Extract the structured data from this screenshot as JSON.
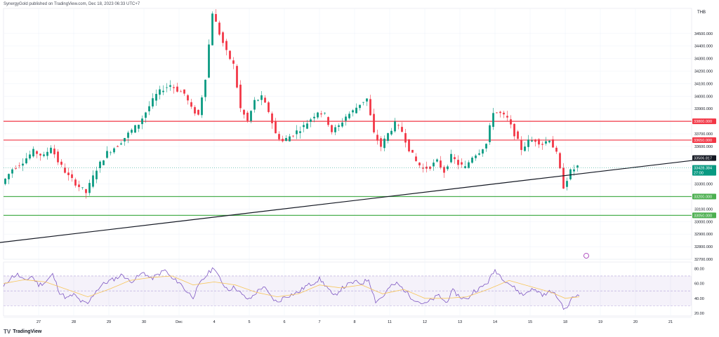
{
  "header": {
    "publisher": "SynergyGold published on TradingView.com, Dec 18, 2023 06:33 UTC+7"
  },
  "footer": {
    "brand": "TradingView"
  },
  "chart_data": [
    {
      "type": "candlestick",
      "currency": "THB",
      "ylim": [
        32700,
        34700
      ],
      "yticks": [
        32700,
        32800,
        32900,
        33000,
        33100,
        33200,
        33300,
        33400,
        33500,
        33600,
        33700,
        33800,
        33900,
        34000,
        34100,
        34200,
        34300,
        34400,
        34500
      ],
      "y_tick_labels": [
        "32700.000",
        "32800.000",
        "32900.000",
        "33000.000",
        "33100.000",
        "33200.000",
        "33300.000",
        "33400.000",
        "33500.000",
        "33600.000",
        "33700.000",
        "33800.000",
        "33900.000",
        "34000.000",
        "34100.000",
        "34200.000",
        "34300.000",
        "34400.000",
        "34500.000"
      ],
      "x_tick_labels": [
        "27",
        "28",
        "29",
        "30",
        "Dec",
        "4",
        "5",
        "6",
        "7",
        "8",
        "11",
        "12",
        "13",
        "14",
        "15",
        "18",
        "19",
        "20",
        "21"
      ],
      "x_tick_index": [
        10,
        20,
        30,
        40,
        50,
        60,
        70,
        80,
        90,
        100,
        110,
        120,
        130,
        140,
        150,
        160,
        170,
        180,
        190
      ],
      "close_path": [
        [
          0,
          33300
        ],
        [
          3,
          33420
        ],
        [
          6,
          33480
        ],
        [
          9,
          33560
        ],
        [
          12,
          33520
        ],
        [
          14,
          33600
        ],
        [
          16,
          33480
        ],
        [
          19,
          33360
        ],
        [
          22,
          33280
        ],
        [
          24,
          33230
        ],
        [
          27,
          33420
        ],
        [
          30,
          33550
        ],
        [
          33,
          33610
        ],
        [
          36,
          33700
        ],
        [
          39,
          33780
        ],
        [
          42,
          33920
        ],
        [
          44,
          34010
        ],
        [
          46,
          34060
        ],
        [
          48,
          34090
        ],
        [
          50,
          34050
        ],
        [
          52,
          34020
        ],
        [
          54,
          33900
        ],
        [
          56,
          33850
        ],
        [
          58,
          34150
        ],
        [
          60,
          34670
        ],
        [
          62,
          34500
        ],
        [
          64,
          34350
        ],
        [
          66,
          34250
        ],
        [
          68,
          33900
        ],
        [
          70,
          33800
        ],
        [
          72,
          33960
        ],
        [
          74,
          33990
        ],
        [
          76,
          33880
        ],
        [
          78,
          33700
        ],
        [
          80,
          33640
        ],
        [
          82,
          33680
        ],
        [
          84,
          33720
        ],
        [
          86,
          33760
        ],
        [
          88,
          33820
        ],
        [
          90,
          33880
        ],
        [
          92,
          33850
        ],
        [
          94,
          33720
        ],
        [
          96,
          33760
        ],
        [
          98,
          33840
        ],
        [
          100,
          33880
        ],
        [
          102,
          33940
        ],
        [
          104,
          33980
        ],
        [
          106,
          33700
        ],
        [
          108,
          33600
        ],
        [
          110,
          33700
        ],
        [
          112,
          33780
        ],
        [
          114,
          33720
        ],
        [
          116,
          33580
        ],
        [
          118,
          33480
        ],
        [
          120,
          33420
        ],
        [
          122,
          33440
        ],
        [
          124,
          33480
        ],
        [
          126,
          33400
        ],
        [
          128,
          33520
        ],
        [
          130,
          33460
        ],
        [
          132,
          33430
        ],
        [
          134,
          33520
        ],
        [
          136,
          33560
        ],
        [
          138,
          33620
        ],
        [
          140,
          33880
        ],
        [
          142,
          33860
        ],
        [
          144,
          33820
        ],
        [
          146,
          33700
        ],
        [
          148,
          33580
        ],
        [
          150,
          33640
        ],
        [
          152,
          33650
        ],
        [
          154,
          33620
        ],
        [
          156,
          33660
        ],
        [
          158,
          33540
        ],
        [
          160,
          33280
        ],
        [
          162,
          33400
        ],
        [
          164,
          33440
        ]
      ],
      "price_levels": [
        {
          "value": 33800,
          "label": "33800.000",
          "color": "#f23645"
        },
        {
          "value": 33650,
          "label": "33650.000",
          "color": "#f23645"
        },
        {
          "value": 33200,
          "label": "33200.000",
          "color": "#4caf50"
        },
        {
          "value": 33050,
          "label": "33050.000",
          "color": "#4caf50"
        }
      ],
      "last_price": {
        "value": 33428.384,
        "label": "33428.384",
        "countdown": "27:00",
        "color": "#089981"
      },
      "marker_price": {
        "value": 33506.817,
        "label": "33506.817",
        "color": "#131722"
      },
      "trendline": {
        "from": [
          -2,
          32830
        ],
        "to": [
          200,
          33500
        ],
        "color": "#131722"
      },
      "up_color": "#089981",
      "down_color": "#f23645"
    },
    {
      "type": "line",
      "indicator": "rsi",
      "ylim": [
        20,
        85
      ],
      "yticks": [
        20,
        40,
        60,
        80
      ],
      "y_tick_labels": [
        "20.00",
        "40.00",
        "60.00",
        "80.00"
      ],
      "band": [
        30,
        70
      ],
      "rsi_path": [
        [
          0,
          55
        ],
        [
          2,
          68
        ],
        [
          4,
          72
        ],
        [
          6,
          63
        ],
        [
          8,
          70
        ],
        [
          10,
          58
        ],
        [
          12,
          62
        ],
        [
          14,
          72
        ],
        [
          16,
          48
        ],
        [
          18,
          40
        ],
        [
          20,
          45
        ],
        [
          22,
          36
        ],
        [
          24,
          32
        ],
        [
          26,
          48
        ],
        [
          28,
          58
        ],
        [
          30,
          63
        ],
        [
          32,
          67
        ],
        [
          34,
          72
        ],
        [
          36,
          62
        ],
        [
          38,
          68
        ],
        [
          40,
          75
        ],
        [
          42,
          66
        ],
        [
          44,
          72
        ],
        [
          46,
          78
        ],
        [
          48,
          66
        ],
        [
          50,
          62
        ],
        [
          52,
          50
        ],
        [
          54,
          42
        ],
        [
          56,
          60
        ],
        [
          58,
          72
        ],
        [
          60,
          82
        ],
        [
          62,
          62
        ],
        [
          64,
          52
        ],
        [
          66,
          55
        ],
        [
          68,
          44
        ],
        [
          70,
          38
        ],
        [
          72,
          48
        ],
        [
          74,
          56
        ],
        [
          76,
          43
        ],
        [
          78,
          34
        ],
        [
          80,
          42
        ],
        [
          82,
          45
        ],
        [
          84,
          48
        ],
        [
          86,
          56
        ],
        [
          88,
          60
        ],
        [
          90,
          66
        ],
        [
          92,
          56
        ],
        [
          94,
          42
        ],
        [
          96,
          52
        ],
        [
          98,
          58
        ],
        [
          100,
          62
        ],
        [
          102,
          60
        ],
        [
          104,
          66
        ],
        [
          106,
          36
        ],
        [
          108,
          42
        ],
        [
          110,
          55
        ],
        [
          112,
          60
        ],
        [
          114,
          52
        ],
        [
          116,
          42
        ],
        [
          118,
          36
        ],
        [
          120,
          32
        ],
        [
          122,
          38
        ],
        [
          124,
          44
        ],
        [
          126,
          34
        ],
        [
          128,
          50
        ],
        [
          130,
          42
        ],
        [
          132,
          38
        ],
        [
          134,
          50
        ],
        [
          136,
          54
        ],
        [
          138,
          62
        ],
        [
          140,
          78
        ],
        [
          142,
          68
        ],
        [
          144,
          60
        ],
        [
          146,
          52
        ],
        [
          148,
          44
        ],
        [
          150,
          52
        ],
        [
          152,
          50
        ],
        [
          154,
          44
        ],
        [
          156,
          50
        ],
        [
          158,
          40
        ],
        [
          160,
          24
        ],
        [
          162,
          40
        ],
        [
          164,
          46
        ]
      ],
      "signal_path": [
        [
          0,
          60
        ],
        [
          6,
          65
        ],
        [
          12,
          62
        ],
        [
          18,
          52
        ],
        [
          24,
          42
        ],
        [
          30,
          52
        ],
        [
          36,
          64
        ],
        [
          42,
          68
        ],
        [
          48,
          70
        ],
        [
          54,
          58
        ],
        [
          60,
          62
        ],
        [
          66,
          58
        ],
        [
          72,
          48
        ],
        [
          78,
          42
        ],
        [
          84,
          46
        ],
        [
          90,
          58
        ],
        [
          96,
          54
        ],
        [
          102,
          58
        ],
        [
          108,
          46
        ],
        [
          114,
          52
        ],
        [
          120,
          40
        ],
        [
          126,
          40
        ],
        [
          132,
          42
        ],
        [
          138,
          52
        ],
        [
          144,
          64
        ],
        [
          150,
          56
        ],
        [
          156,
          48
        ],
        [
          160,
          40
        ],
        [
          164,
          42
        ]
      ],
      "rsi_color": "#7e57c2",
      "signal_color": "#f7c65a",
      "band_color": "#7e57c2"
    }
  ]
}
